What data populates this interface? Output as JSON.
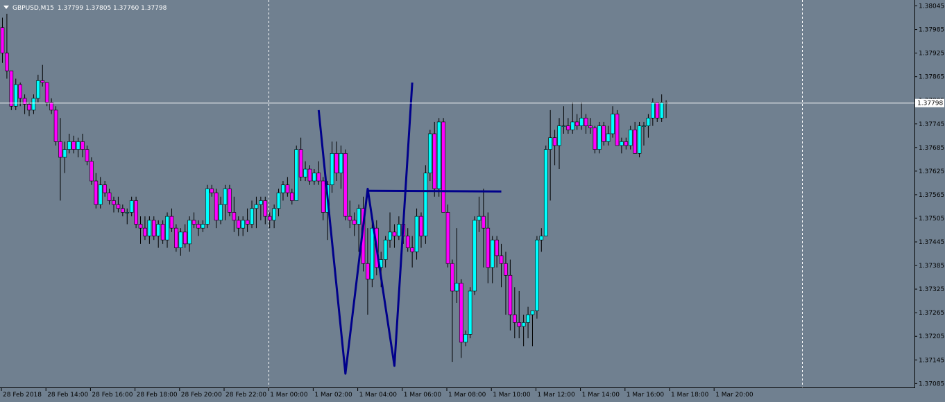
{
  "header": {
    "symbol": "GBPUSD,M15",
    "ohlc": "1.37799 1.37805 1.37760 1.37798"
  },
  "colors": {
    "background": "#708090",
    "bull": "#00FFFF",
    "bear": "#FF00FF",
    "wick": "#000000",
    "pattern_line": "#00008B",
    "bid_line": "#FFFFFF"
  },
  "chart_data": {
    "type": "candlestick",
    "price_ticks": [
      "1.38045",
      "1.37985",
      "1.37925",
      "1.37865",
      "1.37805",
      "1.37745",
      "1.37685",
      "1.37625",
      "1.37565",
      "1.37505",
      "1.37445",
      "1.37385",
      "1.37325",
      "1.37265",
      "1.37205",
      "1.37145",
      "1.37085"
    ],
    "ylim": [
      1.37075,
      1.3806
    ],
    "current_price_label": "1.37798",
    "current_price": 1.37798,
    "time_labels": [
      "28 Feb 2018",
      "28 Feb 14:00",
      "28 Feb 16:00",
      "28 Feb 18:00",
      "28 Feb 20:00",
      "28 Feb 22:00",
      "1 Mar 00:00",
      "1 Mar 02:00",
      "1 Mar 04:00",
      "1 Mar 06:00",
      "1 Mar 08:00",
      "1 Mar 10:00",
      "1 Mar 12:00",
      "1 Mar 14:00",
      "1 Mar 16:00",
      "1 Mar 18:00",
      "1 Mar 20:00"
    ],
    "period_separators": [
      "1 Mar 00:00",
      "2 Mar 00:00"
    ],
    "candles": [
      [
        1.3799,
        1.38015,
        1.379,
        1.37925
      ],
      [
        1.37925,
        1.38025,
        1.3786,
        1.3788
      ],
      [
        1.3788,
        1.3788,
        1.3778,
        1.3779
      ],
      [
        1.3779,
        1.3786,
        1.3778,
        1.37845
      ],
      [
        1.37845,
        1.3785,
        1.3779,
        1.3781
      ],
      [
        1.3781,
        1.3782,
        1.3777,
        1.37795
      ],
      [
        1.37795,
        1.378,
        1.37765,
        1.3778
      ],
      [
        1.3778,
        1.3782,
        1.3777,
        1.3781
      ],
      [
        1.3781,
        1.3787,
        1.378,
        1.37855
      ],
      [
        1.37855,
        1.37895,
        1.3784,
        1.3785
      ],
      [
        1.3785,
        1.3785,
        1.3779,
        1.378
      ],
      [
        1.378,
        1.3781,
        1.3777,
        1.3778
      ],
      [
        1.3778,
        1.3779,
        1.3769,
        1.377
      ],
      [
        1.377,
        1.3776,
        1.3755,
        1.3766
      ],
      [
        1.3766,
        1.377,
        1.3762,
        1.3768
      ],
      [
        1.3768,
        1.3772,
        1.3767,
        1.377
      ],
      [
        1.377,
        1.37715,
        1.3767,
        1.3768
      ],
      [
        1.3768,
        1.3771,
        1.3766,
        1.377
      ],
      [
        1.377,
        1.3772,
        1.3766,
        1.3768
      ],
      [
        1.3768,
        1.3769,
        1.3764,
        1.3765
      ],
      [
        1.3765,
        1.3766,
        1.3759,
        1.376
      ],
      [
        1.376,
        1.3762,
        1.3753,
        1.3754
      ],
      [
        1.3754,
        1.3761,
        1.3753,
        1.3759
      ],
      [
        1.3759,
        1.376,
        1.3756,
        1.3757
      ],
      [
        1.3757,
        1.3758,
        1.3754,
        1.3755
      ],
      [
        1.3755,
        1.3756,
        1.3752,
        1.3754
      ],
      [
        1.3754,
        1.3756,
        1.3752,
        1.3753
      ],
      [
        1.3753,
        1.3754,
        1.3751,
        1.3752
      ],
      [
        1.3752,
        1.3753,
        1.3749,
        1.3752
      ],
      [
        1.3752,
        1.3756,
        1.3751,
        1.3755
      ],
      [
        1.3755,
        1.3756,
        1.3748,
        1.3749
      ],
      [
        1.3749,
        1.3751,
        1.3744,
        1.3748
      ],
      [
        1.3748,
        1.3751,
        1.3745,
        1.3746
      ],
      [
        1.3746,
        1.3751,
        1.3744,
        1.375
      ],
      [
        1.375,
        1.3751,
        1.3745,
        1.3746
      ],
      [
        1.3746,
        1.375,
        1.3743,
        1.3749
      ],
      [
        1.3749,
        1.375,
        1.3744,
        1.3745
      ],
      [
        1.3745,
        1.3752,
        1.3743,
        1.3751
      ],
      [
        1.3751,
        1.3753,
        1.3747,
        1.3748
      ],
      [
        1.3748,
        1.3749,
        1.3742,
        1.3743
      ],
      [
        1.3743,
        1.3748,
        1.3741,
        1.3747
      ],
      [
        1.3747,
        1.3749,
        1.3743,
        1.3744
      ],
      [
        1.3744,
        1.3751,
        1.3742,
        1.375
      ],
      [
        1.375,
        1.3752,
        1.3748,
        1.3749
      ],
      [
        1.3749,
        1.375,
        1.3746,
        1.3748
      ],
      [
        1.3748,
        1.375,
        1.3747,
        1.3749
      ],
      [
        1.3749,
        1.3759,
        1.3748,
        1.3758
      ],
      [
        1.3758,
        1.3759,
        1.3756,
        1.3757
      ],
      [
        1.3757,
        1.3758,
        1.3748,
        1.375
      ],
      [
        1.375,
        1.3756,
        1.3749,
        1.3754
      ],
      [
        1.3754,
        1.3759,
        1.375,
        1.3758
      ],
      [
        1.3758,
        1.3759,
        1.3751,
        1.3752
      ],
      [
        1.3752,
        1.3756,
        1.3747,
        1.375
      ],
      [
        1.375,
        1.3751,
        1.3746,
        1.3748
      ],
      [
        1.3748,
        1.3751,
        1.3746,
        1.375
      ],
      [
        1.375,
        1.3753,
        1.3747,
        1.3749
      ],
      [
        1.3749,
        1.3755,
        1.3748,
        1.3753
      ],
      [
        1.3753,
        1.3756,
        1.3748,
        1.3754
      ],
      [
        1.3754,
        1.3756,
        1.375,
        1.3755
      ],
      [
        1.3755,
        1.3756,
        1.3749,
        1.3751
      ],
      [
        1.3751,
        1.3752,
        1.3748,
        1.375
      ],
      [
        1.375,
        1.3754,
        1.3748,
        1.3753
      ],
      [
        1.3753,
        1.3758,
        1.3751,
        1.3757
      ],
      [
        1.3757,
        1.376,
        1.3755,
        1.3759
      ],
      [
        1.3759,
        1.3761,
        1.3756,
        1.3757
      ],
      [
        1.3757,
        1.3758,
        1.3754,
        1.3755
      ],
      [
        1.3755,
        1.3769,
        1.3755,
        1.3768
      ],
      [
        1.3768,
        1.3771,
        1.376,
        1.3761
      ],
      [
        1.3761,
        1.3765,
        1.376,
        1.3763
      ],
      [
        1.3763,
        1.3764,
        1.3759,
        1.376
      ],
      [
        1.376,
        1.3763,
        1.3759,
        1.3762
      ],
      [
        1.3762,
        1.3765,
        1.3759,
        1.376
      ],
      [
        1.376,
        1.3761,
        1.375,
        1.3752
      ],
      [
        1.3752,
        1.376,
        1.3745,
        1.3759
      ],
      [
        1.3759,
        1.377,
        1.3757,
        1.3767
      ],
      [
        1.3767,
        1.377,
        1.376,
        1.3762
      ],
      [
        1.3762,
        1.3769,
        1.3758,
        1.3767
      ],
      [
        1.3767,
        1.3768,
        1.375,
        1.3751
      ],
      [
        1.3751,
        1.3755,
        1.3748,
        1.375
      ],
      [
        1.375,
        1.3752,
        1.3746,
        1.3749
      ],
      [
        1.3749,
        1.3754,
        1.3742,
        1.3753
      ],
      [
        1.3753,
        1.3756,
        1.3737,
        1.3739
      ],
      [
        1.3739,
        1.3748,
        1.3726,
        1.3735
      ],
      [
        1.3735,
        1.375,
        1.3733,
        1.3748
      ],
      [
        1.3748,
        1.375,
        1.3736,
        1.3738
      ],
      [
        1.3738,
        1.3742,
        1.3733,
        1.374
      ],
      [
        1.374,
        1.3746,
        1.3738,
        1.3745
      ],
      [
        1.3745,
        1.3752,
        1.3743,
        1.3747
      ],
      [
        1.3747,
        1.3749,
        1.3743,
        1.3746
      ],
      [
        1.3746,
        1.3751,
        1.3745,
        1.3749
      ],
      [
        1.3749,
        1.375,
        1.3744,
        1.3746
      ],
      [
        1.3746,
        1.3748,
        1.3742,
        1.3743
      ],
      [
        1.3743,
        1.3746,
        1.3738,
        1.3742
      ],
      [
        1.3742,
        1.3753,
        1.374,
        1.3751
      ],
      [
        1.3751,
        1.3752,
        1.3743,
        1.3746
      ],
      [
        1.3746,
        1.3764,
        1.3744,
        1.3762
      ],
      [
        1.3762,
        1.3773,
        1.376,
        1.3772
      ],
      [
        1.3772,
        1.3775,
        1.3756,
        1.3758
      ],
      [
        1.3758,
        1.3776,
        1.3756,
        1.3775
      ],
      [
        1.3775,
        1.3776,
        1.3752,
        1.3752
      ],
      [
        1.3752,
        1.3754,
        1.3738,
        1.3739
      ],
      [
        1.3739,
        1.374,
        1.3714,
        1.3732
      ],
      [
        1.3732,
        1.3748,
        1.3729,
        1.3734
      ],
      [
        1.3734,
        1.3735,
        1.3715,
        1.3719
      ],
      [
        1.3719,
        1.3722,
        1.3718,
        1.3721
      ],
      [
        1.3721,
        1.3733,
        1.372,
        1.3732
      ],
      [
        1.3732,
        1.3751,
        1.3731,
        1.375
      ],
      [
        1.375,
        1.3756,
        1.3747,
        1.3751
      ],
      [
        1.3751,
        1.3758,
        1.3738,
        1.3748
      ],
      [
        1.3748,
        1.3752,
        1.3734,
        1.3738
      ],
      [
        1.3738,
        1.3746,
        1.3734,
        1.3745
      ],
      [
        1.3745,
        1.3746,
        1.3738,
        1.3741
      ],
      [
        1.3741,
        1.3744,
        1.3733,
        1.3739
      ],
      [
        1.3739,
        1.3742,
        1.3726,
        1.3736
      ],
      [
        1.3736,
        1.374,
        1.3722,
        1.3726
      ],
      [
        1.3726,
        1.3733,
        1.372,
        1.3724
      ],
      [
        1.3724,
        1.3732,
        1.372,
        1.3723
      ],
      [
        1.3723,
        1.3726,
        1.3718,
        1.3724
      ],
      [
        1.3724,
        1.3728,
        1.372,
        1.3726
      ],
      [
        1.3726,
        1.3727,
        1.3718,
        1.3727
      ],
      [
        1.3727,
        1.3746,
        1.3725,
        1.3745
      ],
      [
        1.3745,
        1.3748,
        1.3742,
        1.3746
      ],
      [
        1.3746,
        1.3769,
        1.3746,
        1.3768
      ],
      [
        1.3768,
        1.3778,
        1.3755,
        1.3771
      ],
      [
        1.3771,
        1.3773,
        1.3764,
        1.3769
      ],
      [
        1.3769,
        1.3776,
        1.3763,
        1.3774
      ],
      [
        1.3774,
        1.3779,
        1.3772,
        1.3774
      ],
      [
        1.3774,
        1.3776,
        1.3772,
        1.3773
      ],
      [
        1.3773,
        1.378,
        1.3772,
        1.3775
      ],
      [
        1.3775,
        1.3777,
        1.3773,
        1.3774
      ],
      [
        1.3774,
        1.378,
        1.3773,
        1.3776
      ],
      [
        1.3776,
        1.3777,
        1.3772,
        1.3774
      ],
      [
        1.3774,
        1.3776,
        1.3772,
        1.37735
      ],
      [
        1.37735,
        1.3774,
        1.3767,
        1.3768
      ],
      [
        1.3768,
        1.3775,
        1.3767,
        1.3774
      ],
      [
        1.3774,
        1.3775,
        1.3769,
        1.377
      ],
      [
        1.377,
        1.3774,
        1.3769,
        1.3772
      ],
      [
        1.3772,
        1.3779,
        1.3771,
        1.3777
      ],
      [
        1.3777,
        1.3778,
        1.3769,
        1.3769
      ],
      [
        1.3769,
        1.3771,
        1.3767,
        1.377
      ],
      [
        1.377,
        1.3771,
        1.3768,
        1.3769
      ],
      [
        1.3769,
        1.3774,
        1.3768,
        1.3773
      ],
      [
        1.3773,
        1.3775,
        1.3767,
        1.3767
      ],
      [
        1.3767,
        1.3775,
        1.3766,
        1.3774
      ],
      [
        1.3774,
        1.3775,
        1.3769,
        1.3774
      ],
      [
        1.3774,
        1.3777,
        1.3771,
        1.3776
      ],
      [
        1.3776,
        1.3781,
        1.3774,
        1.378
      ],
      [
        1.378,
        1.378,
        1.3775,
        1.3776
      ],
      [
        1.3776,
        1.3782,
        1.3775,
        1.378
      ],
      [
        1.37799,
        1.37805,
        1.3776,
        1.37798
      ]
    ],
    "pattern_line": [
      [
        71,
        1.3778
      ],
      [
        77,
        1.3711
      ],
      [
        82,
        1.3758
      ],
      [
        88,
        1.3713
      ],
      [
        92,
        1.3785
      ]
    ],
    "horizontal_level": {
      "from": 82,
      "to": 112,
      "value": 1.37575
    }
  }
}
